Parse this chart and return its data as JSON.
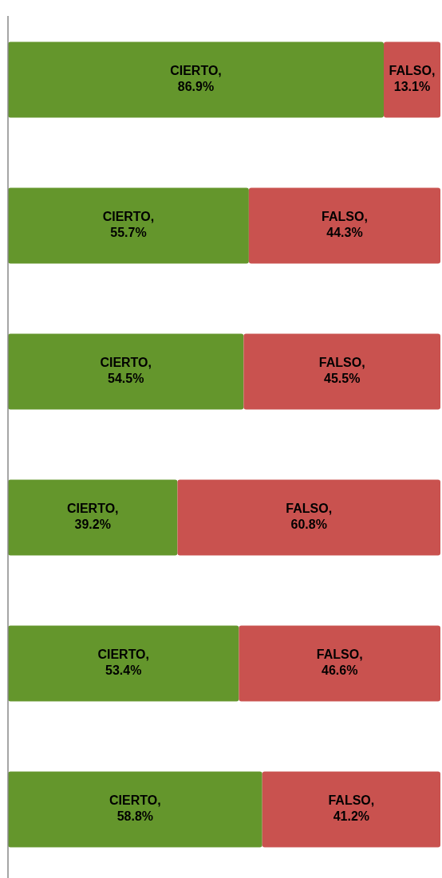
{
  "chart_data": {
    "type": "bar",
    "orientation": "horizontal",
    "stacked": true,
    "categories": [
      null,
      null,
      null,
      null,
      null,
      null
    ],
    "xlim": [
      0,
      100
    ],
    "series": [
      {
        "color": "#64962c",
        "values": [
          86.9,
          55.7,
          54.5,
          39.2,
          53.4,
          58.8
        ],
        "value_labels": [
          "CIERTO,\n86.9%",
          "CIERTO,\n55.7%",
          "CIERTO,\n54.5%",
          "CIERTO,\n39.2%",
          "CIERTO,\n53.4%",
          "CIERTO,\n58.8%"
        ]
      },
      {
        "color": "#c9524f",
        "values": [
          13.1,
          44.3,
          45.5,
          60.8,
          46.6,
          41.2
        ],
        "value_labels": [
          "FALSO,\n13.1%",
          "FALSO,\n44.3%",
          "FALSO,\n45.5%",
          "FALSO,\n60.8%",
          "FALSO,\n46.6%",
          "FALSO,\n41.2%"
        ]
      }
    ]
  }
}
